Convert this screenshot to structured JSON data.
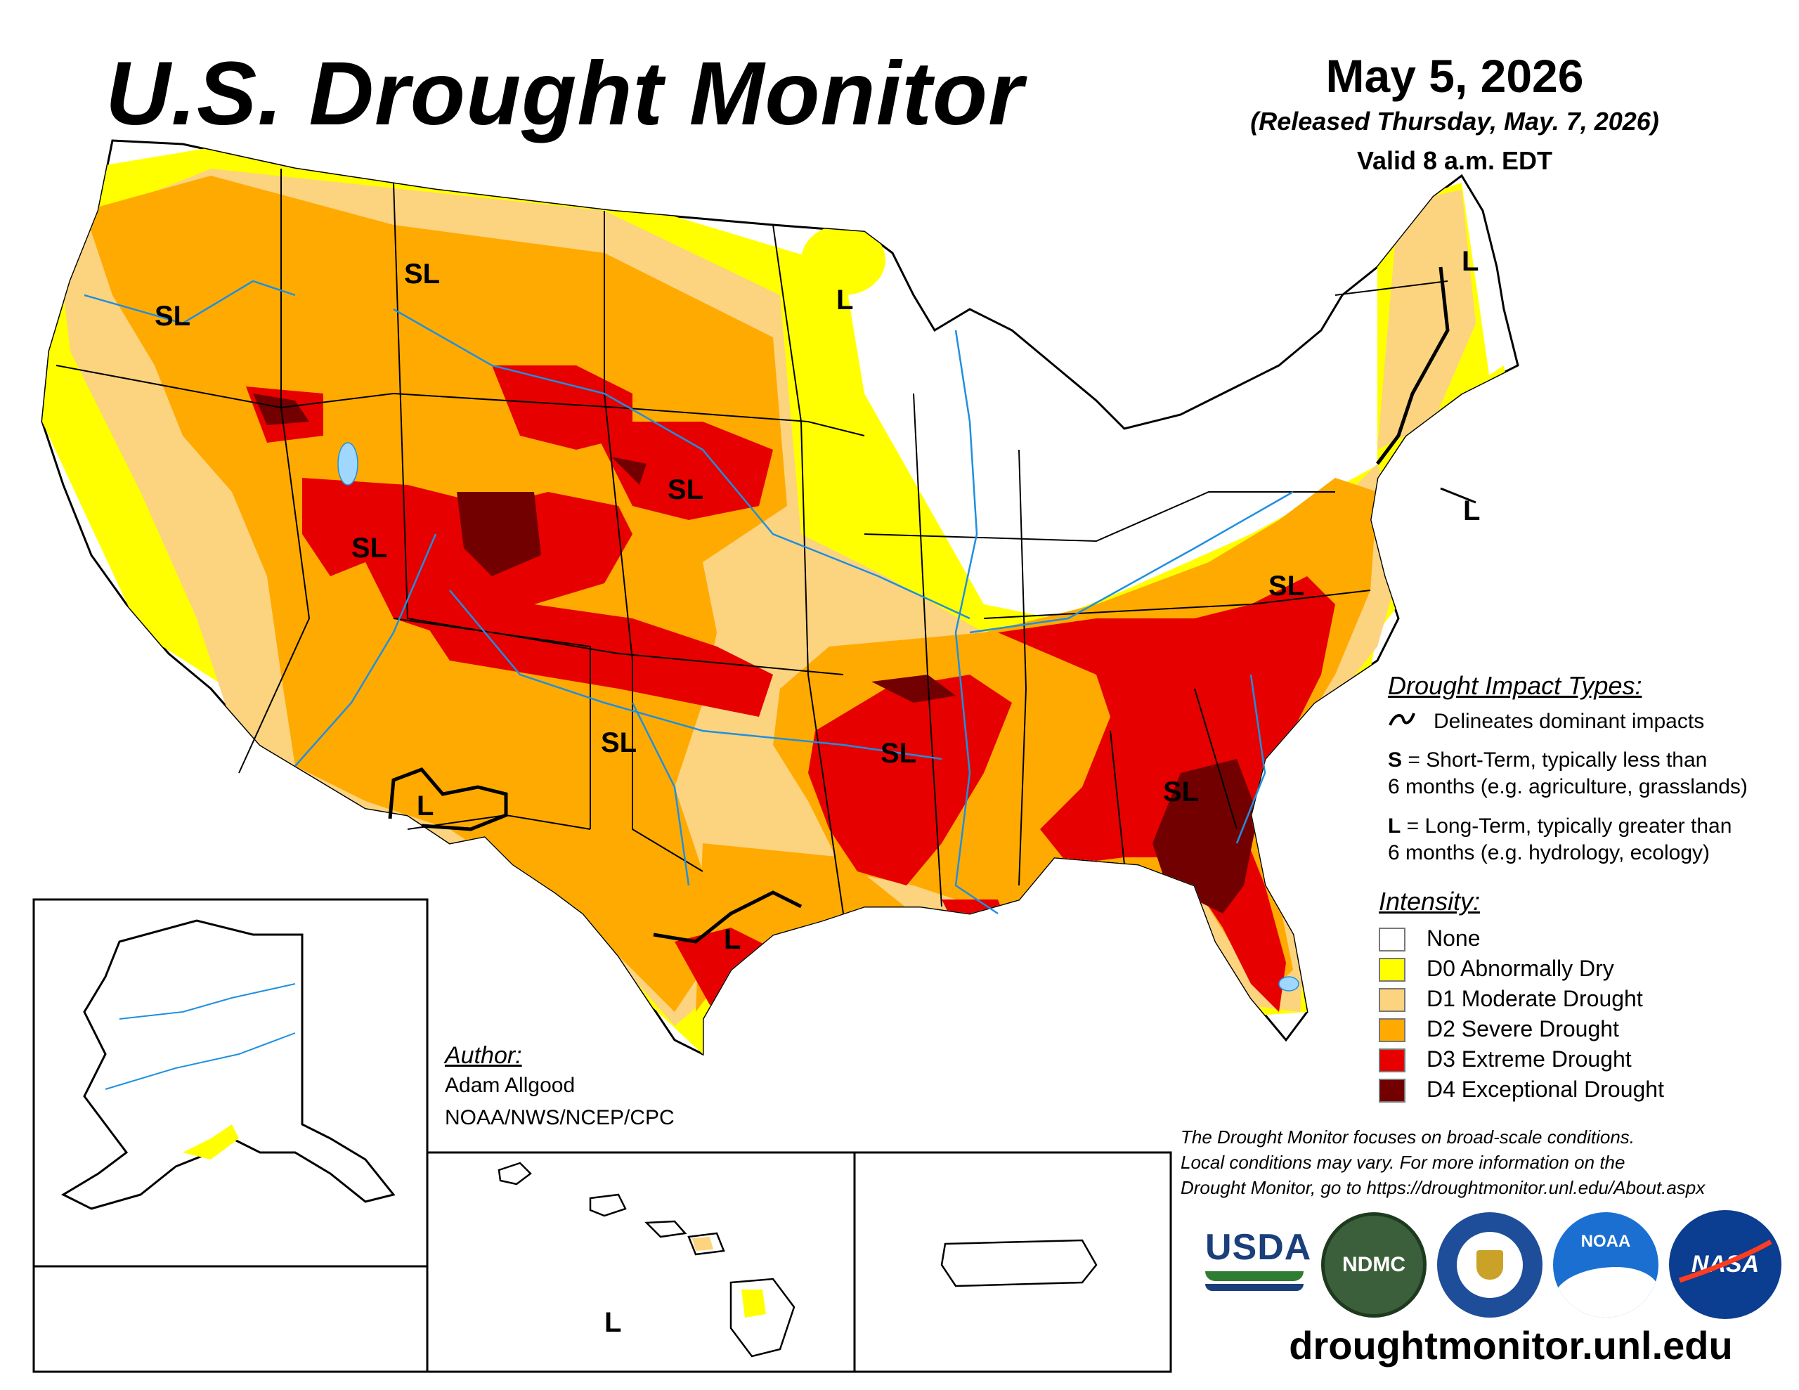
{
  "header": {
    "title": "U.S. Drought Monitor",
    "date": "May 5, 2026",
    "released": "(Released Thursday, May. 7, 2026)",
    "valid": "Valid 8 a.m. EDT"
  },
  "impact_types": {
    "heading": "Drought Impact Types:",
    "delineates": "Delineates dominant impacts",
    "short_term_code": "S",
    "short_term_line1": " = Short-Term, typically less than",
    "short_term_line2": "6 months (e.g. agriculture, grasslands)",
    "long_term_code": "L",
    "long_term_line1": " = Long-Term, typically greater than",
    "long_term_line2": "6 months (e.g. hydrology, ecology)"
  },
  "intensity": {
    "heading": "Intensity:",
    "items": [
      {
        "label": "None",
        "color": "#ffffff"
      },
      {
        "label": "D0 Abnormally Dry",
        "color": "#ffff00"
      },
      {
        "label": "D1 Moderate Drought",
        "color": "#fcd37f"
      },
      {
        "label": "D2 Severe Drought",
        "color": "#ffaa00"
      },
      {
        "label": "D3 Extreme Drought",
        "color": "#e60000"
      },
      {
        "label": "D4 Exceptional Drought",
        "color": "#730000"
      }
    ]
  },
  "author": {
    "heading": "Author:",
    "name": "Adam Allgood",
    "org": "NOAA/NWS/NCEP/CPC"
  },
  "note": {
    "line1": "The Drought Monitor focuses on broad-scale conditions.",
    "line2": "Local conditions may vary. For more information on the",
    "line3": "Drought Monitor, go to https://droughtmonitor.unl.edu/About.aspx"
  },
  "website": "droughtmonitor.unl.edu",
  "map_labels": {
    "pacific_nw": "SL",
    "montana": "SL",
    "nevada_utah": "SL",
    "nebraska": "SL",
    "oklahoma": "SL",
    "arkansas": "SL",
    "georgia": "SL",
    "virginia": "SL",
    "minnesota": "L",
    "maine": "L",
    "new_jersey": "L",
    "new_mexico": "L",
    "texas": "L",
    "hawaii": "L"
  },
  "logos": {
    "usda": "USDA",
    "ndmc": "NDMC",
    "noaa": "NOAA",
    "nasa": "NASA"
  }
}
